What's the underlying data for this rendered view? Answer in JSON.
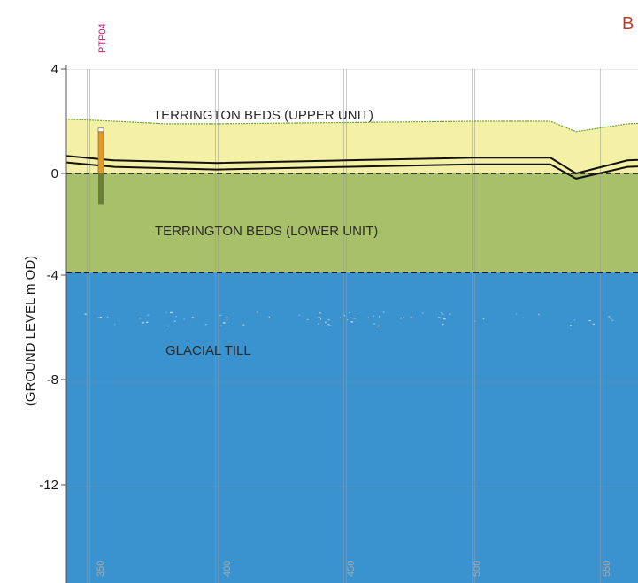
{
  "section_label": "B",
  "borehole": {
    "name": "PTP04",
    "color": "#c2187a",
    "chainage": 350,
    "top_level": 1.6,
    "bottom_level": -1.2,
    "pipe_color": "#e39a2d",
    "screen_color": "#6c7c3a"
  },
  "y_axis": {
    "label": "(GROUND LEVEL m OD)",
    "ticks": [
      "4",
      "0",
      "-4",
      "-8",
      "-12"
    ]
  },
  "x_axis": {
    "ticks": [
      "350",
      "400",
      "450",
      "500",
      "550"
    ]
  },
  "units": [
    {
      "name": "TERRINGTON BEDS (UPPER UNIT)",
      "color": "#f4f0a6"
    },
    {
      "name": "TERRINGTON BEDS (LOWER UNIT)",
      "color": "#a9c06a"
    },
    {
      "name": "GLACIAL TILL",
      "color": "#3a93cf"
    }
  ],
  "interfaces": {
    "upper_lower_base": 0,
    "lower_till_base": -3.8
  },
  "ground_surface": [
    [
      338,
      2.1
    ],
    [
      360,
      2.0
    ],
    [
      380,
      1.9
    ],
    [
      400,
      1.9
    ],
    [
      450,
      1.95
    ],
    [
      500,
      2.0
    ],
    [
      530,
      2.0
    ],
    [
      540,
      1.6
    ],
    [
      560,
      1.9
    ],
    [
      585,
      2.0
    ]
  ],
  "strata_lines": [
    [
      [
        338,
        0.7
      ],
      [
        360,
        0.5
      ],
      [
        400,
        0.4
      ],
      [
        450,
        0.5
      ],
      [
        500,
        0.6
      ],
      [
        530,
        0.6
      ],
      [
        540,
        0.0
      ],
      [
        560,
        0.5
      ],
      [
        585,
        0.6
      ]
    ],
    [
      [
        338,
        0.45
      ],
      [
        360,
        0.25
      ],
      [
        400,
        0.15
      ],
      [
        450,
        0.25
      ],
      [
        500,
        0.35
      ],
      [
        530,
        0.35
      ],
      [
        540,
        -0.2
      ],
      [
        560,
        0.25
      ],
      [
        585,
        0.35
      ]
    ]
  ]
}
